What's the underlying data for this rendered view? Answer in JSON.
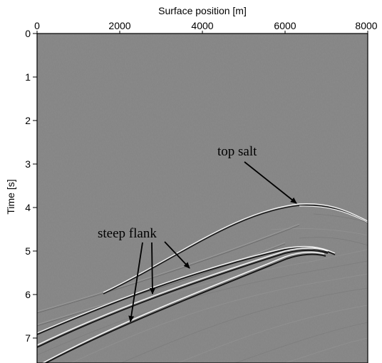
{
  "figure": {
    "x_axis": {
      "label": "Surface position [m]",
      "ticks": [
        "0",
        "2000",
        "4000",
        "6000",
        "8000"
      ],
      "position": "top"
    },
    "y_axis": {
      "label": "Time [s]",
      "ticks": [
        "0",
        "1",
        "2",
        "3",
        "4",
        "5",
        "6",
        "7"
      ]
    },
    "annotations": {
      "top_salt": "top salt",
      "steep_flank": "steep flank"
    },
    "colors": {
      "background_panel": "#858585",
      "reflector_light": "#f2f2f2",
      "reflector_dark": "#1a1a1a"
    }
  }
}
